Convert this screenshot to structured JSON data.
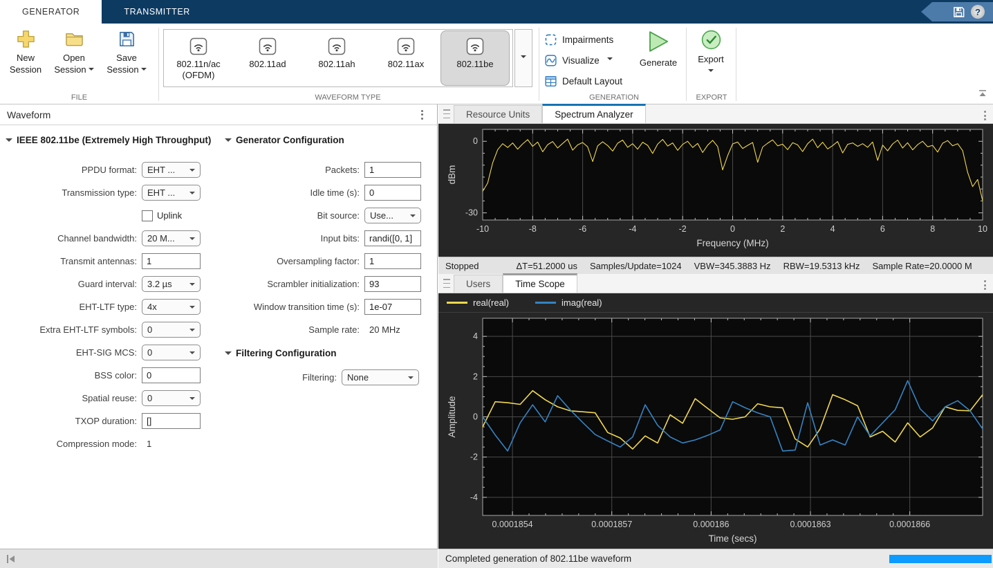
{
  "titlebar": {
    "tabs": [
      {
        "label": "GENERATOR",
        "active": true
      },
      {
        "label": "TRANSMITTER",
        "active": false
      }
    ],
    "help_glyph": "?"
  },
  "toolstrip": {
    "file": {
      "section_label": "FILE",
      "new_label": "New Session",
      "open_label": "Open Session",
      "save_label": "Save Session"
    },
    "gallery": {
      "section_label": "WAVEFORM TYPE",
      "items": [
        {
          "label": "802.11n/ac (OFDM)",
          "selected": false
        },
        {
          "label": "802.11ad",
          "selected": false
        },
        {
          "label": "802.11ah",
          "selected": false
        },
        {
          "label": "802.11ax",
          "selected": false
        },
        {
          "label": "802.11be",
          "selected": true
        }
      ]
    },
    "generation": {
      "section_label": "GENERATION",
      "toggles": [
        "Impairments",
        "Visualize",
        "Default Layout"
      ],
      "generate_label": "Generate"
    },
    "export": {
      "section_label": "EXPORT",
      "button_label": "Export"
    }
  },
  "left_panel": {
    "header": "Waveform",
    "waveform_section_title": "IEEE 802.11be (Extremely High Throughput)",
    "generator_section_title": "Generator Configuration",
    "filtering_section_title": "Filtering Configuration",
    "waveform_fields": [
      {
        "label": "PPDU format:",
        "type": "combo",
        "value": "EHT ..."
      },
      {
        "label": "Transmission type:",
        "type": "combo",
        "value": "EHT ..."
      },
      {
        "label": "",
        "type": "checkbox",
        "value": "Uplink",
        "checked": false
      },
      {
        "label": "Channel bandwidth:",
        "type": "combo",
        "value": "20 M..."
      },
      {
        "label": "Transmit antennas:",
        "type": "input",
        "value": "1"
      },
      {
        "label": "Guard interval:",
        "type": "combo",
        "value": "3.2 µs"
      },
      {
        "label": "EHT-LTF type:",
        "type": "combo",
        "value": "4x"
      },
      {
        "label": "Extra EHT-LTF symbols:",
        "type": "combo",
        "value": "0"
      },
      {
        "label": "EHT-SIG MCS:",
        "type": "combo",
        "value": "0"
      },
      {
        "label": "BSS color:",
        "type": "input",
        "value": "0"
      },
      {
        "label": "Spatial reuse:",
        "type": "combo",
        "value": "0"
      },
      {
        "label": "TXOP duration:",
        "type": "input",
        "value": "[]"
      },
      {
        "label": "Compression mode:",
        "type": "static",
        "value": "1"
      }
    ],
    "generator_fields": [
      {
        "label": "Packets:",
        "type": "input",
        "value": "1"
      },
      {
        "label": "Idle time (s):",
        "type": "input",
        "value": "0"
      },
      {
        "label": "Bit source:",
        "type": "combo",
        "value": "Use..."
      },
      {
        "label": "Input bits:",
        "type": "input",
        "value": "randi([0, 1]"
      },
      {
        "label": "Oversampling factor:",
        "type": "input",
        "value": "1"
      },
      {
        "label": "Scrambler initialization:",
        "type": "input",
        "value": "93"
      },
      {
        "label": "Window transition time (s):",
        "type": "input",
        "value": "1e-07"
      },
      {
        "label": "Sample rate:",
        "type": "static",
        "value": "20 MHz"
      }
    ],
    "filtering_fields": [
      {
        "label": "Filtering:",
        "type": "combo",
        "value": "None",
        "label_w": 172,
        "ctrl_w": 112
      }
    ]
  },
  "right_top": {
    "tabs": [
      {
        "label": "Resource Units",
        "active": false
      },
      {
        "label": "Spectrum Analyzer",
        "active": true
      }
    ],
    "status_items": [
      "Stopped",
      "ΔT=51.2000 us",
      "Samples/Update=1024",
      "VBW=345.3883 Hz",
      "RBW=19.5313 kHz",
      "Sample Rate=20.0000 M"
    ]
  },
  "right_bottom": {
    "tabs": [
      {
        "label": "Users",
        "active": false
      },
      {
        "label": "Time Scope",
        "active": true
      }
    ],
    "legend": [
      {
        "label": "real(real)",
        "color": "#f2d84f"
      },
      {
        "label": "imag(real)",
        "color": "#3584c4"
      }
    ]
  },
  "status_bar": {
    "message": "Completed generation of 802.11be waveform"
  },
  "colors": {
    "titlebar": "#0d3a61",
    "active_tab_accent": "#1673b4",
    "trace_yellow": "#f2d84f",
    "trace_blue": "#3584c4",
    "progress_blue": "#0d9bff"
  },
  "chart_data": [
    {
      "id": "spectrum",
      "type": "line",
      "xlabel": "Frequency (MHz)",
      "ylabel": "dBm",
      "x_range": [
        -10,
        10
      ],
      "ylim": [
        -33,
        5
      ],
      "x_ticks": [
        -10,
        -8,
        -6,
        -4,
        -2,
        0,
        2,
        4,
        6,
        8,
        10
      ],
      "x_tick_labels": [
        "-10",
        "-8",
        "-6",
        "-4",
        "-2",
        "0",
        "2",
        "4",
        "6",
        "8",
        "10"
      ],
      "y_ticks": [
        0,
        -30
      ],
      "y_tick_labels": [
        "0",
        "-30"
      ],
      "grid": "x",
      "x_minor": 3,
      "y_minor": 5,
      "series": [
        {
          "name": "spectrum",
          "color": "#f2d84f",
          "width": 1.1,
          "values": [
            -21,
            -17.5,
            -9,
            -3.5,
            -1.0,
            -2.6,
            -0.7,
            -3.3,
            -1.1,
            0.7,
            -2.1,
            -0.3,
            -4.4,
            -1.4,
            -0.1,
            -2.8,
            -0.9,
            0.9,
            -3.7,
            -1.5,
            -0.5,
            -2.3,
            -8.5,
            -1.9,
            -0.2,
            -1.8,
            -4.1,
            -0.8,
            0.5,
            -2.5,
            -1.0,
            -3.3,
            -0.4,
            -1.7,
            -5.1,
            -1.2,
            0.8,
            -2.0,
            -0.7,
            -3.8,
            -1.3,
            0.0,
            -2.6,
            -0.9,
            -4.7,
            -1.6,
            0.4,
            -2.2,
            -12.0,
            -6.0,
            -1.1,
            -0.3,
            -3.0,
            -1.7,
            -0.5,
            -8.8,
            -2.4,
            -0.8,
            0.6,
            -1.9,
            -1.2,
            -3.5,
            -0.6,
            -1.5,
            -4.3,
            -1.0,
            0.9,
            -2.7,
            -0.4,
            -3.2,
            -1.8,
            -0.1,
            -4.9,
            -1.3,
            -0.7,
            -2.1,
            -1.0,
            -2.5,
            -0.3,
            -8.0,
            -1.6,
            -4.0,
            -1.1,
            0.5,
            -2.8,
            -0.6,
            -3.6,
            -1.4,
            0.0,
            -2.3,
            -1.7,
            -4.5,
            -0.8,
            0.3,
            -1.9,
            -1.0,
            -3.9,
            -13.0,
            -19.0,
            -16.0,
            -25.0
          ]
        }
      ]
    },
    {
      "id": "timescope",
      "type": "line",
      "xlabel": "Time (secs)",
      "ylabel": "Amplitude",
      "x_range": [
        0.00018531,
        0.00018682
      ],
      "ylim": [
        -4.9,
        4.9
      ],
      "x_ticks": [
        0.0001854,
        0.0001857,
        0.000186,
        0.0001863,
        0.0001866
      ],
      "x_tick_labels": [
        "0.0001854",
        "0.0001857",
        "0.000186",
        "0.0001863",
        "0.0001866"
      ],
      "y_ticks": [
        4,
        2,
        0,
        -2,
        -4
      ],
      "y_tick_labels": [
        "4",
        "2",
        "0",
        "-2",
        "-4"
      ],
      "grid": "xy",
      "x_minor": 5,
      "y_minor": 3,
      "series": [
        {
          "name": "real(real)",
          "color": "#f2d84f",
          "width": 1.6,
          "values": [
            -0.5,
            0.75,
            0.7,
            0.62,
            1.3,
            0.85,
            0.5,
            0.3,
            0.25,
            0.2,
            -0.78,
            -1.05,
            -1.6,
            -0.95,
            -1.3,
            0.1,
            -0.32,
            0.9,
            0.42,
            -0.05,
            -0.12,
            0.0,
            0.65,
            0.5,
            0.45,
            -1.1,
            -1.5,
            -0.6,
            1.1,
            0.85,
            0.55,
            -1.0,
            -0.72,
            -1.25,
            -0.3,
            -1.0,
            -0.55,
            0.5,
            0.32,
            0.3,
            1.1
          ]
        },
        {
          "name": "imag(real)",
          "color": "#3584c4",
          "width": 1.6,
          "values": [
            0.0,
            -0.9,
            -1.7,
            -0.3,
            0.6,
            -0.25,
            1.05,
            0.35,
            -0.28,
            -0.88,
            -1.2,
            -1.5,
            -1.0,
            0.6,
            -0.42,
            -1.0,
            -1.3,
            -1.15,
            -0.92,
            -0.65,
            0.75,
            0.45,
            0.2,
            0.0,
            -1.7,
            -1.65,
            0.7,
            -1.4,
            -1.15,
            -1.4,
            0.0,
            -0.95,
            -0.3,
            0.35,
            1.8,
            0.4,
            -0.2,
            0.5,
            0.8,
            0.3,
            -0.6
          ]
        }
      ]
    }
  ]
}
